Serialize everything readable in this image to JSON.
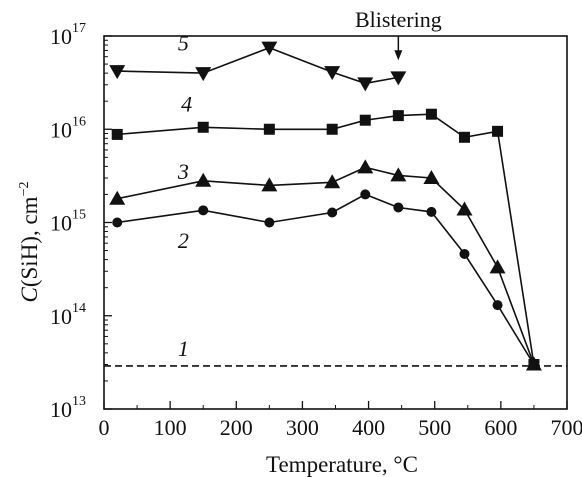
{
  "chart_data": {
    "type": "line",
    "xlabel": "Temperature, °C",
    "ylabel_parts": {
      "var": "C",
      "rest": "(SiH), cm",
      "exp": "−2"
    },
    "xlim": [
      0,
      700
    ],
    "ylim_log10": [
      13,
      17
    ],
    "y_scale": "log",
    "x_ticks": [
      0,
      100,
      200,
      300,
      400,
      500,
      600,
      700
    ],
    "y_ticks": [
      {
        "base": "10",
        "exp": "13",
        "value": 10000000000000.0
      },
      {
        "base": "10",
        "exp": "14",
        "value": 100000000000000.0
      },
      {
        "base": "10",
        "exp": "15",
        "value": 1000000000000000.0
      },
      {
        "base": "10",
        "exp": "16",
        "value": 1e+16
      },
      {
        "base": "10",
        "exp": "17",
        "value": 1e+17
      }
    ],
    "series": [
      {
        "name": "1",
        "marker": "none",
        "dashed": true,
        "x": [
          0,
          700
        ],
        "y": [
          29000000000000.0,
          29000000000000.0
        ],
        "label_at": [
          120,
          44000000000000.0
        ]
      },
      {
        "name": "2",
        "marker": "circle",
        "x": [
          20,
          150,
          250,
          345,
          395,
          445,
          495,
          545,
          595,
          650
        ],
        "y": [
          1000000000000000.0,
          1350000000000000.0,
          1000000000000000.0,
          1280000000000000.0,
          2000000000000000.0,
          1450000000000000.0,
          1300000000000000.0,
          460000000000000.0,
          130000000000000.0,
          30000000000000.0
        ],
        "label_at": [
          120,
          630000000000000.0
        ]
      },
      {
        "name": "3",
        "marker": "triangle-up",
        "x": [
          20,
          150,
          250,
          345,
          395,
          445,
          495,
          545,
          595,
          650
        ],
        "y": [
          1800000000000000.0,
          2800000000000000.0,
          2500000000000000.0,
          2700000000000000.0,
          3900000000000000.0,
          3200000000000000.0,
          3000000000000000.0,
          1380000000000000.0,
          330000000000000.0,
          30000000000000.0
        ],
        "label_at": [
          120,
          3500000000000000.0
        ]
      },
      {
        "name": "4",
        "marker": "square",
        "x": [
          20,
          150,
          250,
          345,
          395,
          445,
          495,
          545,
          595,
          650
        ],
        "y": [
          8800000000000000.0,
          1.05e+16,
          1e+16,
          1e+16,
          1.25e+16,
          1.4e+16,
          1.45e+16,
          8200000000000000.0,
          9500000000000000.0,
          30000000000000.0
        ],
        "label_at": [
          125,
          1.85e+16
        ]
      },
      {
        "name": "5",
        "marker": "triangle-down",
        "x": [
          20,
          150,
          250,
          345,
          395,
          445
        ],
        "y": [
          4.2e+16,
          4e+16,
          7.5e+16,
          4.1e+16,
          3.1e+16,
          3.6e+16
        ],
        "label_at": [
          120,
          8.3e+16
        ]
      }
    ],
    "annotations": [
      {
        "text": "Blistering",
        "x": 445,
        "arrow_to_y": 5.5e+16
      }
    ]
  }
}
